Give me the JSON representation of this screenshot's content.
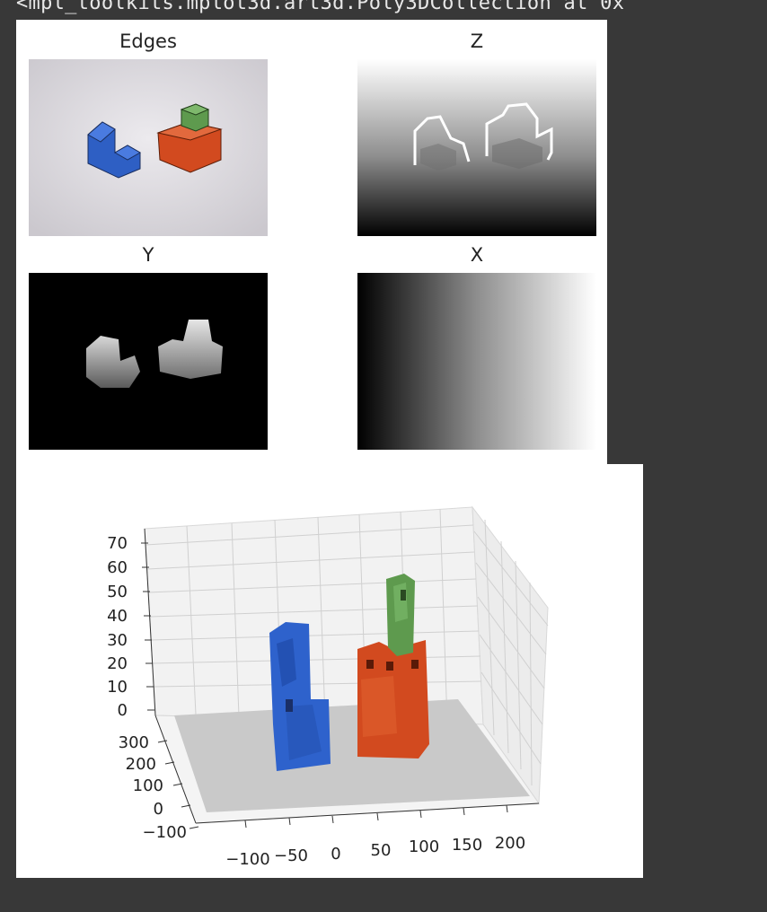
{
  "output_repr": "<mpl_toolkits.mplot3d.art3d.Poly3DCollection at 0x",
  "figure1": {
    "panels": [
      {
        "title": "Edges"
      },
      {
        "title": "Z"
      },
      {
        "title": "Y"
      },
      {
        "title": "X"
      }
    ]
  },
  "figure2": {
    "z_ticks": [
      "70",
      "60",
      "50",
      "40",
      "30",
      "20",
      "10",
      "0"
    ],
    "y_ticks": [
      "300",
      "200",
      "100",
      "0",
      "−100"
    ],
    "x_ticks": [
      "−100",
      "−50",
      "0",
      "50",
      "100",
      "150",
      "200"
    ]
  },
  "colors": {
    "notebook_bg": "#383838",
    "blue_block": "#2e5fc4",
    "orange_block": "#d24a1f",
    "green_block": "#5e9a4e"
  }
}
